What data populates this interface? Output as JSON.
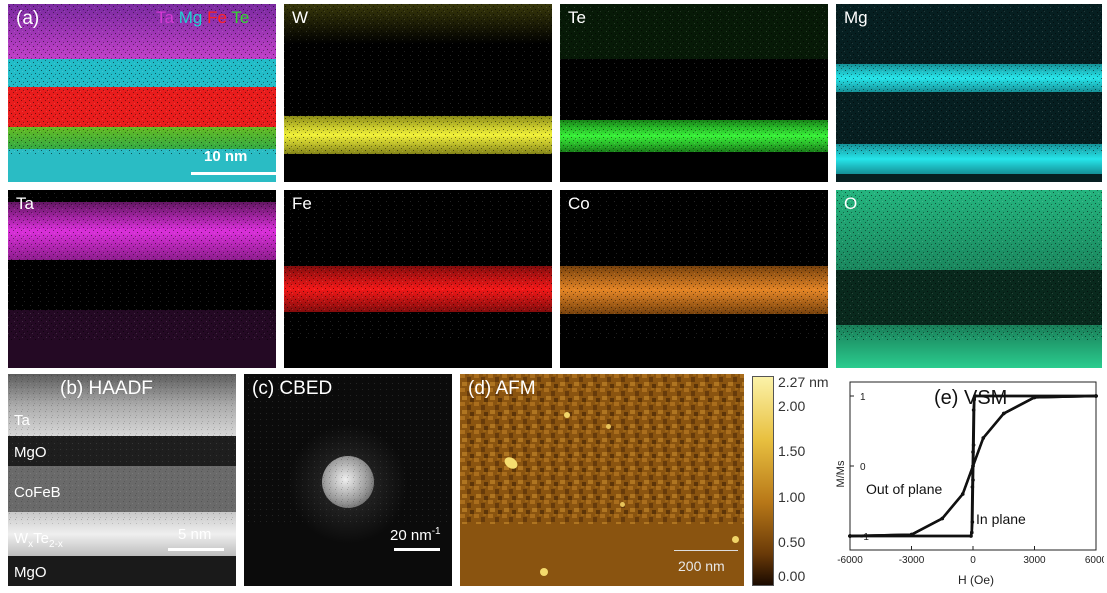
{
  "panel_a": {
    "label": "(a)",
    "legend": [
      {
        "text": "Ta",
        "color": "#d63ad6"
      },
      {
        "text": "Mg",
        "color": "#1fd3d3"
      },
      {
        "text": "Fe",
        "color": "#ff2020"
      },
      {
        "text": "Te",
        "color": "#2fd62f"
      }
    ],
    "scale": "10 nm"
  },
  "maps": [
    {
      "label": "W",
      "color": "#ffff33"
    },
    {
      "label": "Te",
      "color": "#33ff33"
    },
    {
      "label": "Mg",
      "color": "#22e5e5"
    },
    {
      "label": "Ta",
      "color": "#ee33ee"
    },
    {
      "label": "Fe",
      "color": "#ff1a1a"
    },
    {
      "label": "Co",
      "color": "#ff9922"
    },
    {
      "label": "O",
      "color": "#30c88e"
    }
  ],
  "panel_b": {
    "label": "(b) HAADF",
    "layers": {
      "ta": "Ta",
      "mgo1": "MgO",
      "cofeb": "CoFeB",
      "wte_base": "W",
      "wte_x": "x",
      "wte_te": "Te",
      "wte_sub": "2-x",
      "mgo2": "MgO"
    },
    "scale": "5 nm"
  },
  "panel_c": {
    "label": "(c) CBED",
    "scale": "20 nm",
    "scale_sup": "-1"
  },
  "panel_d": {
    "label": "(d) AFM",
    "scale": "200 nm",
    "colorbar_ticks": [
      "2.27 nm",
      "2.00",
      "1.50",
      "1.00",
      "0.50",
      "0.00"
    ]
  },
  "panel_e": {
    "label": "(e) VSM",
    "chart_data": {
      "type": "line",
      "xlabel": "H (Oe)",
      "ylabel": "M/Ms",
      "xlim": [
        -6000,
        6000
      ],
      "ylim": [
        -1.2,
        1.2
      ],
      "xticks": [
        "-6000",
        "-3000",
        "0",
        "3000",
        "6000"
      ],
      "yticks": [
        "1",
        "0",
        "-1"
      ],
      "annotations": [
        "Out of plane",
        "In plane"
      ],
      "series": [
        {
          "x": [
            -6000,
            -100,
            -60,
            -30,
            0,
            30,
            60,
            100,
            6000
          ],
          "y": [
            -1,
            -1,
            -0.95,
            -0.3,
            0.2,
            0.8,
            0.95,
            1,
            1
          ]
        },
        {
          "x": [
            -6000,
            -3000,
            -1500,
            -500,
            0,
            500,
            1500,
            3000,
            6000
          ],
          "y": [
            -1,
            -0.98,
            -0.75,
            -0.4,
            0,
            0.4,
            0.75,
            0.98,
            1
          ]
        }
      ]
    }
  }
}
